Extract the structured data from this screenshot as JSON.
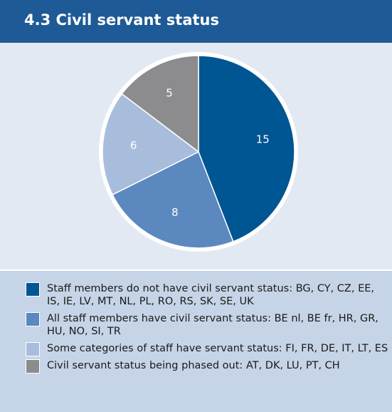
{
  "chart_data": {
    "type": "pie",
    "title": "4.3 Civil servant status",
    "categories": [
      "Staff members do not have civil servant status: BG, CY, CZ, EE, IS, IE, LV, MT, NL, PL, RO, RS, SK, SE, UK",
      "All staff members have civil servant status: BE nl, BE fr, HR, GR, HU, NO, SI, TR",
      "Some categories of staff have servant status: FI, FR, DE, IT, LT, ES",
      "Civil servant status being phased out: AT, DK, LU, PT, CH"
    ],
    "values": [
      15,
      8,
      6,
      5
    ],
    "colors": [
      "#005593",
      "#5b88bf",
      "#a8bddb",
      "#8c8c8e"
    ]
  }
}
